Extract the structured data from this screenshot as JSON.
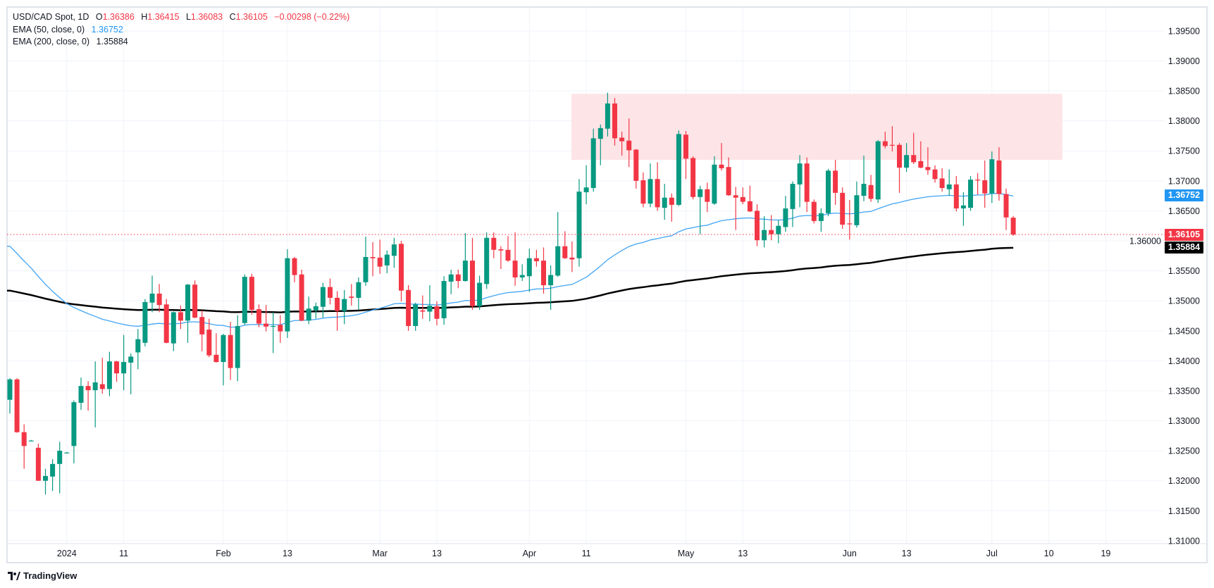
{
  "header": {
    "symbol": "USD/CAD Spot, 1D",
    "open_label": "O",
    "open": "1.36386",
    "high_label": "H",
    "high": "1.36415",
    "low_label": "L",
    "low": "1.36083",
    "close_label": "C",
    "close": "1.36105",
    "change": "−0.00298 (−0.22%)"
  },
  "indicators": [
    {
      "label": "EMA (50, close, 0)",
      "value": "1.36752"
    },
    {
      "label": "EMA (200, close, 0)",
      "value": "1.35884"
    }
  ],
  "price_axis": {
    "ticks": [
      "1.39500",
      "1.39000",
      "1.38500",
      "1.38000",
      "1.37500",
      "1.37000",
      "1.36500",
      "1.36000",
      "1.35500",
      "1.35000",
      "1.34500",
      "1.34000",
      "1.33500",
      "1.33000",
      "1.32500",
      "1.32000",
      "1.31500",
      "1.31000"
    ],
    "tags": {
      "ema50": "1.36752",
      "last": "1.36105",
      "ema200": "1.35884"
    }
  },
  "time_axis": {
    "labels": [
      {
        "text": "2024",
        "bar": 8
      },
      {
        "text": "11",
        "bar": 16
      },
      {
        "text": "Feb",
        "bar": 30
      },
      {
        "text": "13",
        "bar": 39
      },
      {
        "text": "Mar",
        "bar": 52
      },
      {
        "text": "13",
        "bar": 60
      },
      {
        "text": "Apr",
        "bar": 73
      },
      {
        "text": "11",
        "bar": 81
      },
      {
        "text": "May",
        "bar": 95
      },
      {
        "text": "13",
        "bar": 103
      },
      {
        "text": "Jun",
        "bar": 118
      },
      {
        "text": "13",
        "bar": 126
      },
      {
        "text": "Jul",
        "bar": 138
      },
      {
        "text": "10",
        "bar": 146
      },
      {
        "text": "19",
        "bar": 154
      }
    ]
  },
  "logo": {
    "text": "TradingView"
  },
  "colors": {
    "up": "#089981",
    "down": "#f23645",
    "ema50": "#42a5f5",
    "ema200": "#000000",
    "zone": "#fde4e6",
    "grid": "#f0f3fa"
  },
  "chart_data": {
    "type": "candlestick",
    "title": "USD/CAD Spot, 1D",
    "ylim": [
      1.3095,
      1.399
    ],
    "grid": true,
    "last_price": 1.36105,
    "ema50_start": 1.3591,
    "ema200_start": 1.3517,
    "highlight_zone": {
      "price_range": [
        1.3735,
        1.3845
      ],
      "bar_range": [
        79,
        148
      ]
    },
    "ohlc": [
      [
        1.3335,
        1.3371,
        1.3312,
        1.3369
      ],
      [
        1.3369,
        1.3371,
        1.328,
        1.3281
      ],
      [
        1.3281,
        1.3294,
        1.322,
        1.3258
      ],
      [
        1.3267,
        1.3268,
        1.3266,
        1.3267
      ],
      [
        1.3255,
        1.3262,
        1.32,
        1.32
      ],
      [
        1.32,
        1.322,
        1.3177,
        1.3208
      ],
      [
        1.3207,
        1.3236,
        1.3183,
        1.3228
      ],
      [
        1.3228,
        1.3265,
        1.3179,
        1.325
      ],
      [
        1.3247,
        1.3248,
        1.3246,
        1.3247
      ],
      [
        1.3258,
        1.3334,
        1.3229,
        1.3331
      ],
      [
        1.333,
        1.3372,
        1.3318,
        1.3358
      ],
      [
        1.3358,
        1.3366,
        1.3317,
        1.3351
      ],
      [
        1.3351,
        1.3399,
        1.3289,
        1.3364
      ],
      [
        1.3361,
        1.3405,
        1.3345,
        1.3353
      ],
      [
        1.3353,
        1.3415,
        1.3341,
        1.3399
      ],
      [
        1.3399,
        1.34,
        1.3365,
        1.3379
      ],
      [
        1.3379,
        1.3443,
        1.3351,
        1.3398
      ],
      [
        1.3397,
        1.3412,
        1.3344,
        1.3407
      ],
      [
        1.3414,
        1.3453,
        1.3386,
        1.3436
      ],
      [
        1.343,
        1.3503,
        1.3424,
        1.3498
      ],
      [
        1.3497,
        1.3542,
        1.3481,
        1.3512
      ],
      [
        1.3512,
        1.3528,
        1.3481,
        1.3493
      ],
      [
        1.3494,
        1.3503,
        1.3429,
        1.343
      ],
      [
        1.3429,
        1.3482,
        1.3416,
        1.3481
      ],
      [
        1.3481,
        1.3492,
        1.3453,
        1.3467
      ],
      [
        1.3467,
        1.3528,
        1.343,
        1.3527
      ],
      [
        1.3527,
        1.3534,
        1.3471,
        1.3472
      ],
      [
        1.3473,
        1.3484,
        1.3416,
        1.3444
      ],
      [
        1.3452,
        1.347,
        1.3406,
        1.3409
      ],
      [
        1.341,
        1.3446,
        1.3397,
        1.3398
      ],
      [
        1.3398,
        1.3445,
        1.3359,
        1.3443
      ],
      [
        1.3443,
        1.3465,
        1.3368,
        1.3388
      ],
      [
        1.3388,
        1.3476,
        1.3366,
        1.3458
      ],
      [
        1.3463,
        1.3544,
        1.346,
        1.354
      ],
      [
        1.354,
        1.3545,
        1.3477,
        1.3485
      ],
      [
        1.3486,
        1.3494,
        1.3456,
        1.3462
      ],
      [
        1.3462,
        1.3493,
        1.3449,
        1.3457
      ],
      [
        1.3457,
        1.3481,
        1.3413,
        1.3458
      ],
      [
        1.346,
        1.3476,
        1.343,
        1.3449
      ],
      [
        1.3449,
        1.3586,
        1.3438,
        1.3571
      ],
      [
        1.3571,
        1.3573,
        1.3531,
        1.3543
      ],
      [
        1.3544,
        1.3552,
        1.3466,
        1.3467
      ],
      [
        1.3467,
        1.3507,
        1.3461,
        1.3487
      ],
      [
        1.3484,
        1.3497,
        1.347,
        1.3491
      ],
      [
        1.349,
        1.353,
        1.3472,
        1.3523
      ],
      [
        1.3523,
        1.3537,
        1.3494,
        1.3505
      ],
      [
        1.3505,
        1.3516,
        1.345,
        1.3483
      ],
      [
        1.3483,
        1.3518,
        1.3461,
        1.3503
      ],
      [
        1.3507,
        1.3528,
        1.3492,
        1.3505
      ],
      [
        1.3505,
        1.3539,
        1.3485,
        1.3531
      ],
      [
        1.3531,
        1.3607,
        1.3525,
        1.3573
      ],
      [
        1.3573,
        1.3598,
        1.3541,
        1.3571
      ],
      [
        1.3572,
        1.3602,
        1.3545,
        1.3557
      ],
      [
        1.3559,
        1.3584,
        1.3546,
        1.3577
      ],
      [
        1.3575,
        1.3605,
        1.3555,
        1.3594
      ],
      [
        1.3595,
        1.36,
        1.3499,
        1.3517
      ],
      [
        1.3518,
        1.3526,
        1.345,
        1.3458
      ],
      [
        1.3458,
        1.3497,
        1.345,
        1.3494
      ],
      [
        1.3484,
        1.3509,
        1.347,
        1.3482
      ],
      [
        1.3482,
        1.3526,
        1.3466,
        1.3492
      ],
      [
        1.3491,
        1.3499,
        1.3459,
        1.347
      ],
      [
        1.3471,
        1.3541,
        1.346,
        1.3533
      ],
      [
        1.3532,
        1.3552,
        1.3511,
        1.3544
      ],
      [
        1.3544,
        1.3552,
        1.3521,
        1.3533
      ],
      [
        1.3533,
        1.3613,
        1.3532,
        1.3567
      ],
      [
        1.3567,
        1.3605,
        1.3485,
        1.3491
      ],
      [
        1.3491,
        1.3542,
        1.3485,
        1.353
      ],
      [
        1.3528,
        1.3614,
        1.352,
        1.3605
      ],
      [
        1.3605,
        1.3614,
        1.3571,
        1.3585
      ],
      [
        1.3586,
        1.3591,
        1.3553,
        1.3584
      ],
      [
        1.3585,
        1.3608,
        1.3565,
        1.3567
      ],
      [
        1.3567,
        1.3614,
        1.3525,
        1.3539
      ],
      [
        1.3539,
        1.3561,
        1.3533,
        1.3543
      ],
      [
        1.3541,
        1.3587,
        1.3515,
        1.3571
      ],
      [
        1.3571,
        1.3585,
        1.3557,
        1.3566
      ],
      [
        1.3567,
        1.3589,
        1.3512,
        1.3526
      ],
      [
        1.3526,
        1.3559,
        1.3485,
        1.3543
      ],
      [
        1.3542,
        1.3648,
        1.354,
        1.3591
      ],
      [
        1.3591,
        1.3616,
        1.357,
        1.3571
      ],
      [
        1.3572,
        1.3599,
        1.3548,
        1.3569
      ],
      [
        1.3571,
        1.3703,
        1.3557,
        1.3682
      ],
      [
        1.3681,
        1.3726,
        1.3661,
        1.3689
      ],
      [
        1.3688,
        1.3787,
        1.3682,
        1.3771
      ],
      [
        1.377,
        1.3794,
        1.3726,
        1.3788
      ],
      [
        1.3787,
        1.3847,
        1.3774,
        1.3829
      ],
      [
        1.3829,
        1.3838,
        1.3759,
        1.3771
      ],
      [
        1.3772,
        1.3782,
        1.3742,
        1.3766
      ],
      [
        1.3767,
        1.3804,
        1.3723,
        1.3751
      ],
      [
        1.3752,
        1.3753,
        1.3687,
        1.37
      ],
      [
        1.3701,
        1.3714,
        1.3656,
        1.3662
      ],
      [
        1.3662,
        1.3729,
        1.3656,
        1.3703
      ],
      [
        1.3703,
        1.3731,
        1.365,
        1.3656
      ],
      [
        1.3655,
        1.3695,
        1.3635,
        1.3672
      ],
      [
        1.3672,
        1.3679,
        1.3632,
        1.366
      ],
      [
        1.366,
        1.3784,
        1.3658,
        1.3778
      ],
      [
        1.3777,
        1.3783,
        1.3703,
        1.3737
      ],
      [
        1.3738,
        1.3741,
        1.3669,
        1.3673
      ],
      [
        1.3673,
        1.3692,
        1.3611,
        1.3686
      ],
      [
        1.3686,
        1.3697,
        1.3648,
        1.3665
      ],
      [
        1.3662,
        1.3741,
        1.366,
        1.3727
      ],
      [
        1.3727,
        1.3763,
        1.3717,
        1.3721
      ],
      [
        1.3723,
        1.3739,
        1.3675,
        1.3676
      ],
      [
        1.3676,
        1.369,
        1.3618,
        1.3672
      ],
      [
        1.3673,
        1.3689,
        1.3661,
        1.3665
      ],
      [
        1.3666,
        1.3692,
        1.3648,
        1.3649
      ],
      [
        1.365,
        1.3661,
        1.3591,
        1.3601
      ],
      [
        1.3601,
        1.3641,
        1.3589,
        1.3618
      ],
      [
        1.3618,
        1.3643,
        1.3601,
        1.3611
      ],
      [
        1.3611,
        1.3635,
        1.3596,
        1.3625
      ],
      [
        1.3623,
        1.3675,
        1.3615,
        1.3654
      ],
      [
        1.3653,
        1.3699,
        1.3623,
        1.3695
      ],
      [
        1.3694,
        1.3743,
        1.3656,
        1.3729
      ],
      [
        1.3729,
        1.3739,
        1.3648,
        1.3665
      ],
      [
        1.3665,
        1.3669,
        1.3629,
        1.3633
      ],
      [
        1.3633,
        1.3654,
        1.3615,
        1.3646
      ],
      [
        1.3646,
        1.372,
        1.3641,
        1.3717
      ],
      [
        1.3717,
        1.3735,
        1.366,
        1.368
      ],
      [
        1.368,
        1.3689,
        1.362,
        1.3627
      ],
      [
        1.3629,
        1.3668,
        1.3602,
        1.3628
      ],
      [
        1.3626,
        1.3699,
        1.3622,
        1.3676
      ],
      [
        1.3675,
        1.3742,
        1.3666,
        1.3695
      ],
      [
        1.3693,
        1.371,
        1.3665,
        1.367
      ],
      [
        1.3669,
        1.3768,
        1.3663,
        1.3766
      ],
      [
        1.3766,
        1.3782,
        1.3754,
        1.3758
      ],
      [
        1.376,
        1.3791,
        1.3749,
        1.3759
      ],
      [
        1.376,
        1.3763,
        1.368,
        1.3722
      ],
      [
        1.3722,
        1.3763,
        1.3715,
        1.3743
      ],
      [
        1.3743,
        1.378,
        1.3728,
        1.3731
      ],
      [
        1.3733,
        1.3766,
        1.3721,
        1.3722
      ],
      [
        1.3723,
        1.3756,
        1.371,
        1.3718
      ],
      [
        1.3719,
        1.3726,
        1.3697,
        1.3703
      ],
      [
        1.3704,
        1.3721,
        1.3682,
        1.3688
      ],
      [
        1.3686,
        1.3719,
        1.3675,
        1.3694
      ],
      [
        1.3694,
        1.3708,
        1.3649,
        1.3654
      ],
      [
        1.3654,
        1.3681,
        1.3625,
        1.3659
      ],
      [
        1.3655,
        1.3708,
        1.365,
        1.3702
      ],
      [
        1.3702,
        1.3713,
        1.3677,
        1.3701
      ],
      [
        1.3701,
        1.3734,
        1.3655,
        1.3679
      ],
      [
        1.3679,
        1.3749,
        1.3663,
        1.3736
      ],
      [
        1.3734,
        1.3756,
        1.3667,
        1.3678
      ],
      [
        1.3678,
        1.3687,
        1.3618,
        1.3639
      ],
      [
        1.36386,
        1.36415,
        1.36083,
        1.36105
      ]
    ]
  }
}
